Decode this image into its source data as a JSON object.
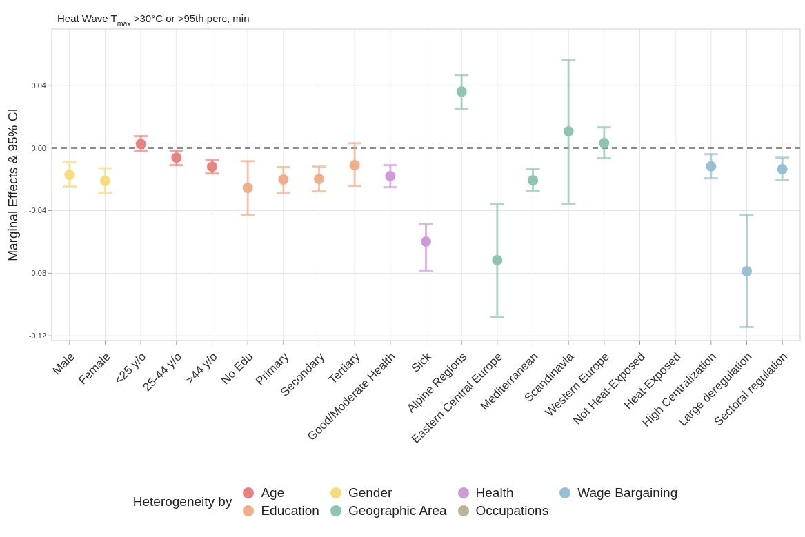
{
  "chart_data": {
    "type": "scatter",
    "title": "Heat Wave T$_{max}$ >30°C or >95th perc, min",
    "ylabel": "Marginal Effects & 95% CI",
    "legend_title": "Heterogeneity by",
    "categories": [
      "Male",
      "Female",
      "<25 y/o",
      "25-44 y/o",
      ">44 y/o",
      "No Edu",
      "Primary",
      "Secondary",
      "Tertiary",
      "Good/Moderate Health",
      "Sick",
      "Alpine Regions",
      "Eastern Central Europe",
      "Mediterranean",
      "Scandinavia",
      "Western Europe",
      "Not Heat-Exposed",
      "Heat-Exposed",
      "High Centralization",
      "Large deregulation",
      "Sectoral regulation"
    ],
    "series": [
      {
        "name": "Age",
        "color": "#e8837f",
        "values": [
          null,
          null,
          0.0026,
          -0.0062,
          -0.0119,
          null,
          null,
          null,
          null,
          null,
          null,
          null,
          null,
          null,
          null,
          null,
          null,
          null,
          null,
          null,
          null
        ],
        "errors": [
          null,
          null,
          [
            -0.0018,
            0.0075
          ],
          [
            -0.011,
            -0.0018
          ],
          [
            -0.0163,
            -0.0075
          ],
          null,
          null,
          null,
          null,
          null,
          null,
          null,
          null,
          null,
          null,
          null,
          null,
          null,
          null,
          null,
          null
        ]
      },
      {
        "name": "Education",
        "color": "#eeaf8a",
        "values": [
          null,
          null,
          null,
          null,
          null,
          -0.0255,
          -0.0202,
          -0.0198,
          -0.011,
          null,
          null,
          null,
          null,
          null,
          null,
          null,
          null,
          null,
          null,
          null,
          null
        ],
        "errors": [
          null,
          null,
          null,
          null,
          null,
          [
            -0.0427,
            -0.0084
          ],
          [
            -0.0286,
            -0.0123
          ],
          [
            -0.0277,
            -0.0119
          ],
          [
            -0.0242,
            0.003
          ],
          null,
          null,
          null,
          null,
          null,
          null,
          null,
          null,
          null,
          null,
          null,
          null
        ]
      },
      {
        "name": "Gender",
        "color": "#f6dc7d",
        "values": [
          -0.0171,
          -0.021,
          null,
          null,
          null,
          null,
          null,
          null,
          null,
          null,
          null,
          null,
          null,
          null,
          null,
          null,
          null,
          null,
          null,
          null,
          null
        ],
        "errors": [
          [
            -0.0246,
            -0.0092
          ],
          [
            -0.0286,
            -0.013
          ],
          null,
          null,
          null,
          null,
          null,
          null,
          null,
          null,
          null,
          null,
          null,
          null,
          null,
          null,
          null,
          null,
          null,
          null,
          null
        ]
      },
      {
        "name": "Geographic Area",
        "color": "#8dc4b2",
        "values": [
          null,
          null,
          null,
          null,
          null,
          null,
          null,
          null,
          null,
          null,
          null,
          0.036,
          -0.0717,
          -0.0207,
          0.0106,
          0.0031,
          null,
          null,
          null,
          null,
          null
        ],
        "errors": [
          null,
          null,
          null,
          null,
          null,
          null,
          null,
          null,
          null,
          null,
          null,
          [
            0.025,
            0.0466
          ],
          [
            -0.1078,
            -0.036
          ],
          [
            -0.0273,
            -0.0136
          ],
          [
            -0.0356,
            0.0563
          ],
          [
            -0.0066,
            0.0132
          ],
          null,
          null,
          null,
          null,
          null
        ]
      },
      {
        "name": "Health",
        "color": "#cf9ad8",
        "values": [
          null,
          null,
          null,
          null,
          null,
          null,
          null,
          null,
          null,
          -0.018,
          -0.0598,
          null,
          null,
          null,
          null,
          null,
          null,
          null,
          null,
          null,
          null
        ],
        "errors": [
          null,
          null,
          null,
          null,
          null,
          null,
          null,
          null,
          null,
          [
            -0.0251,
            -0.011
          ],
          [
            -0.0783,
            -0.0488
          ],
          null,
          null,
          null,
          null,
          null,
          null,
          null,
          null,
          null,
          null
        ]
      },
      {
        "name": "Occupations",
        "color": "#bdb29a",
        "values": [
          null,
          null,
          null,
          null,
          null,
          null,
          null,
          null,
          null,
          null,
          null,
          null,
          null,
          null,
          null,
          null,
          null,
          null,
          null,
          null,
          null
        ]
      },
      {
        "name": "Wage Bargaining",
        "color": "#97c0d2",
        "values": [
          null,
          null,
          null,
          null,
          null,
          null,
          null,
          null,
          null,
          null,
          null,
          null,
          null,
          null,
          null,
          null,
          null,
          null,
          -0.0117,
          -0.0788,
          -0.0136
        ],
        "errors": [
          null,
          null,
          null,
          null,
          null,
          null,
          null,
          null,
          null,
          null,
          null,
          null,
          null,
          null,
          null,
          null,
          null,
          null,
          [
            -0.0194,
            -0.004
          ],
          [
            -0.1144,
            -0.0427
          ],
          [
            -0.0202,
            -0.0062
          ]
        ]
      }
    ],
    "ylim": [
      -0.123,
      0.076
    ],
    "yticks": [
      0.04,
      {
        "value": 0,
        "label": "0.00"
      },
      -0.04,
      -0.08,
      -0.12
    ],
    "ref_lines": [
      {
        "axis": "y",
        "value": 0,
        "color": "#666666",
        "line_style": "dashed"
      }
    ],
    "grid": true,
    "legend": "bottom",
    "marker": "circle"
  }
}
